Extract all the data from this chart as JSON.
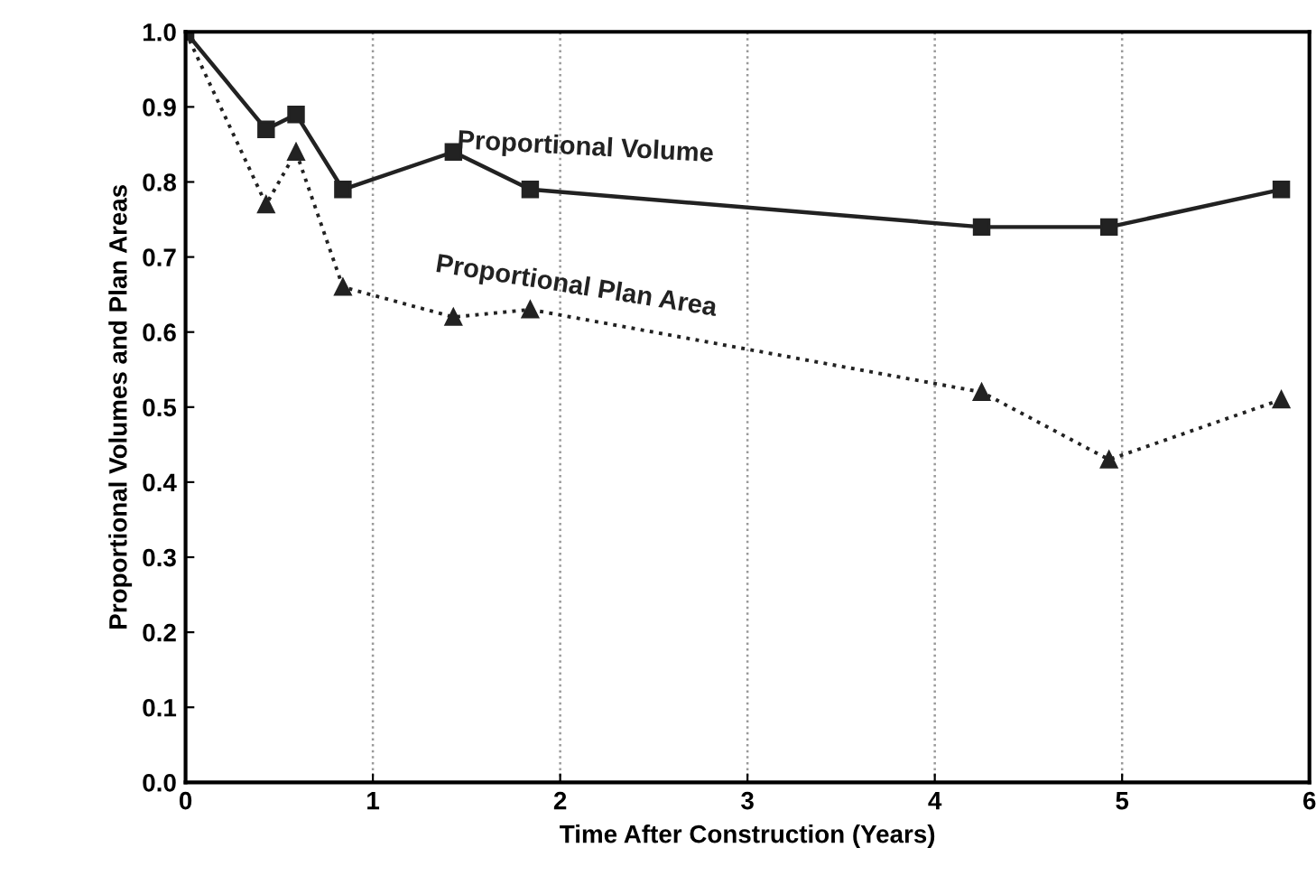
{
  "chart_data": {
    "type": "line",
    "xlabel": "Time After Construction (Years)",
    "ylabel": "Proportional Volumes and Plan Areas",
    "xlim": [
      0,
      6
    ],
    "xticks": [
      0,
      1,
      2,
      3,
      4,
      5,
      6
    ],
    "ylim": [
      0,
      1
    ],
    "yticks": [
      {
        "value": 0,
        "label": "0.0"
      },
      0.1,
      0.2,
      0.3,
      0.4,
      0.5,
      0.6,
      0.7,
      0.8,
      0.9,
      {
        "value": 1,
        "label": "1.0"
      }
    ],
    "grid": "x",
    "legend": false,
    "series": [
      {
        "name": "Proportional Volume",
        "color": "#222222",
        "marker": "square",
        "line_style": "solid",
        "x": [
          0,
          0.43,
          0.59,
          0.84,
          1.43,
          1.84,
          4.25,
          4.93,
          5.85
        ],
        "values": [
          1.0,
          0.87,
          0.89,
          0.79,
          0.84,
          0.79,
          0.74,
          0.74,
          0.79
        ]
      },
      {
        "name": "Proportional Plan Area",
        "color": "#222222",
        "marker": "triangle",
        "line_style": "dotted",
        "x": [
          0,
          0.43,
          0.59,
          0.84,
          1.43,
          1.84,
          4.25,
          4.93,
          5.85
        ],
        "values": [
          1.0,
          0.77,
          0.84,
          0.66,
          0.62,
          0.63,
          0.52,
          0.43,
          0.51
        ]
      }
    ]
  }
}
